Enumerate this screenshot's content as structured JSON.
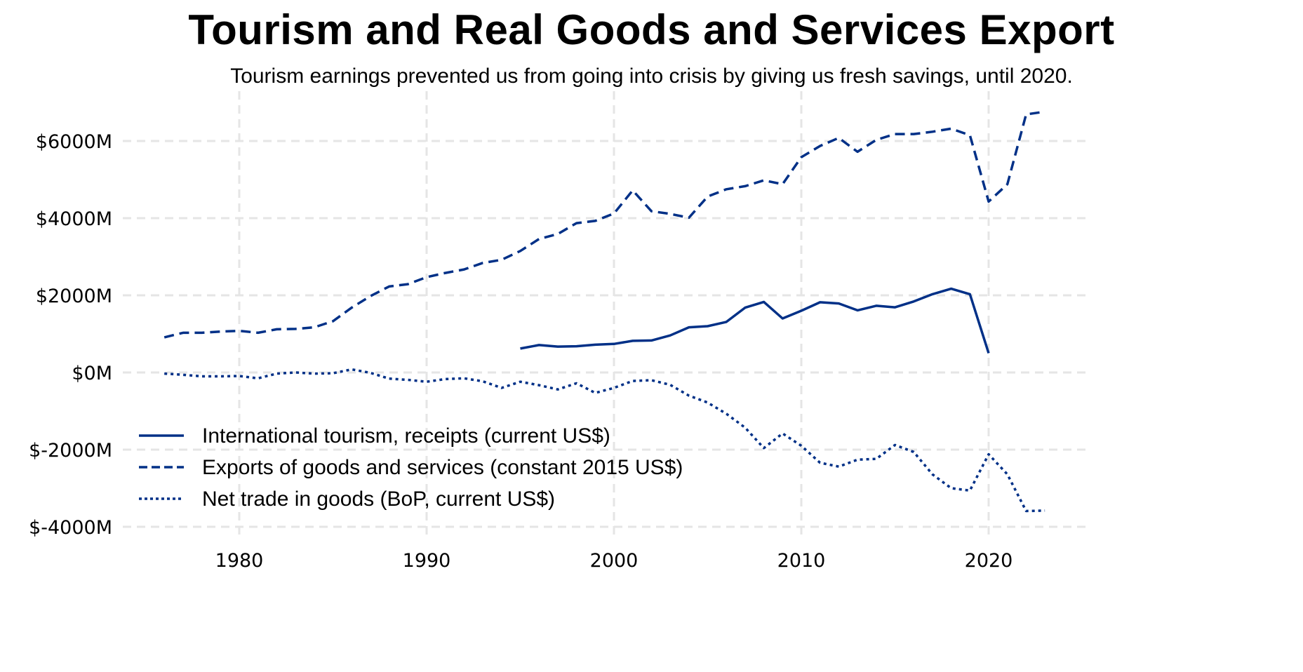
{
  "header": {
    "title": "Tourism and Real Goods and Services Export",
    "subtitle": "Tourism earnings prevented us from going into crisis by giving us fresh savings, until 2020."
  },
  "colors": {
    "series": "#003087",
    "grid": "#e5e5e5"
  },
  "chart_data": {
    "type": "line",
    "title": "Tourism and Real Goods and Services Export",
    "subtitle": "Tourism earnings prevented us from going into crisis by giving us fresh savings, until 2020.",
    "xlabel": "",
    "ylabel": "",
    "xlim": [
      1975,
      2025
    ],
    "ylim": [
      -4000,
      7000
    ],
    "x_ticks": [
      1980,
      1990,
      2000,
      2010,
      2020
    ],
    "x_tick_labels": [
      "1980",
      "1990",
      "2000",
      "2010",
      "2020"
    ],
    "y_ticks": [
      -4000,
      -2000,
      0,
      2000,
      4000,
      6000
    ],
    "y_tick_labels": [
      "$-4000M",
      "$-2000M",
      "$0M",
      "$2000M",
      "$4000M",
      "$6000M"
    ],
    "grid": true,
    "legend_position": "bottom-left",
    "units": "Million US$",
    "series": [
      {
        "name": "International tourism, receipts (current US$)",
        "style": "solid",
        "x": [
          1995,
          1996,
          1997,
          1998,
          1999,
          2000,
          2001,
          2002,
          2003,
          2004,
          2005,
          2006,
          2007,
          2008,
          2009,
          2010,
          2011,
          2012,
          2013,
          2014,
          2015,
          2016,
          2017,
          2018,
          2019,
          2020
        ],
        "values": [
          620,
          710,
          670,
          680,
          720,
          740,
          820,
          830,
          960,
          1170,
          1200,
          1310,
          1680,
          1830,
          1400,
          1600,
          1820,
          1790,
          1610,
          1730,
          1690,
          1840,
          2030,
          2170,
          2030,
          500
        ]
      },
      {
        "name": "Exports of goods and services (constant 2015 US$)",
        "style": "dashed",
        "x": [
          1976,
          1977,
          1978,
          1979,
          1980,
          1981,
          1982,
          1983,
          1984,
          1985,
          1986,
          1987,
          1988,
          1989,
          1990,
          1991,
          1992,
          1993,
          1994,
          1995,
          1996,
          1997,
          1998,
          1999,
          2000,
          2001,
          2002,
          2003,
          2004,
          2005,
          2006,
          2007,
          2008,
          2009,
          2010,
          2011,
          2012,
          2013,
          2014,
          2015,
          2016,
          2017,
          2018,
          2019,
          2020,
          2021,
          2022,
          2023
        ],
        "values": [
          910,
          1030,
          1030,
          1060,
          1080,
          1030,
          1120,
          1130,
          1170,
          1330,
          1680,
          1980,
          2230,
          2290,
          2470,
          2580,
          2670,
          2840,
          2920,
          3150,
          3460,
          3590,
          3870,
          3930,
          4120,
          4720,
          4180,
          4110,
          4010,
          4560,
          4750,
          4830,
          4980,
          4880,
          5580,
          5870,
          6080,
          5720,
          6030,
          6180,
          6180,
          6240,
          6320,
          6150,
          4430,
          4880,
          6690,
          6760
        ]
      },
      {
        "name": "Net trade in goods (BoP, current US$)",
        "style": "dotted",
        "x": [
          1976,
          1977,
          1978,
          1979,
          1980,
          1981,
          1982,
          1983,
          1984,
          1985,
          1986,
          1987,
          1988,
          1989,
          1990,
          1991,
          1992,
          1993,
          1994,
          1995,
          1996,
          1997,
          1998,
          1999,
          2000,
          2001,
          2002,
          2003,
          2004,
          2005,
          2006,
          2007,
          2008,
          2009,
          2010,
          2011,
          2012,
          2013,
          2014,
          2015,
          2016,
          2017,
          2018,
          2019,
          2020,
          2021,
          2022,
          2023
        ],
        "values": [
          -30,
          -60,
          -100,
          -100,
          -90,
          -150,
          -30,
          0,
          -30,
          -20,
          80,
          -10,
          -160,
          -190,
          -240,
          -170,
          -150,
          -230,
          -400,
          -240,
          -330,
          -440,
          -280,
          -530,
          -400,
          -220,
          -200,
          -320,
          -600,
          -780,
          -1070,
          -1430,
          -1960,
          -1580,
          -1900,
          -2340,
          -2440,
          -2260,
          -2240,
          -1880,
          -2060,
          -2640,
          -3000,
          -3060,
          -2120,
          -2640,
          -3590,
          -3580
        ]
      }
    ]
  }
}
